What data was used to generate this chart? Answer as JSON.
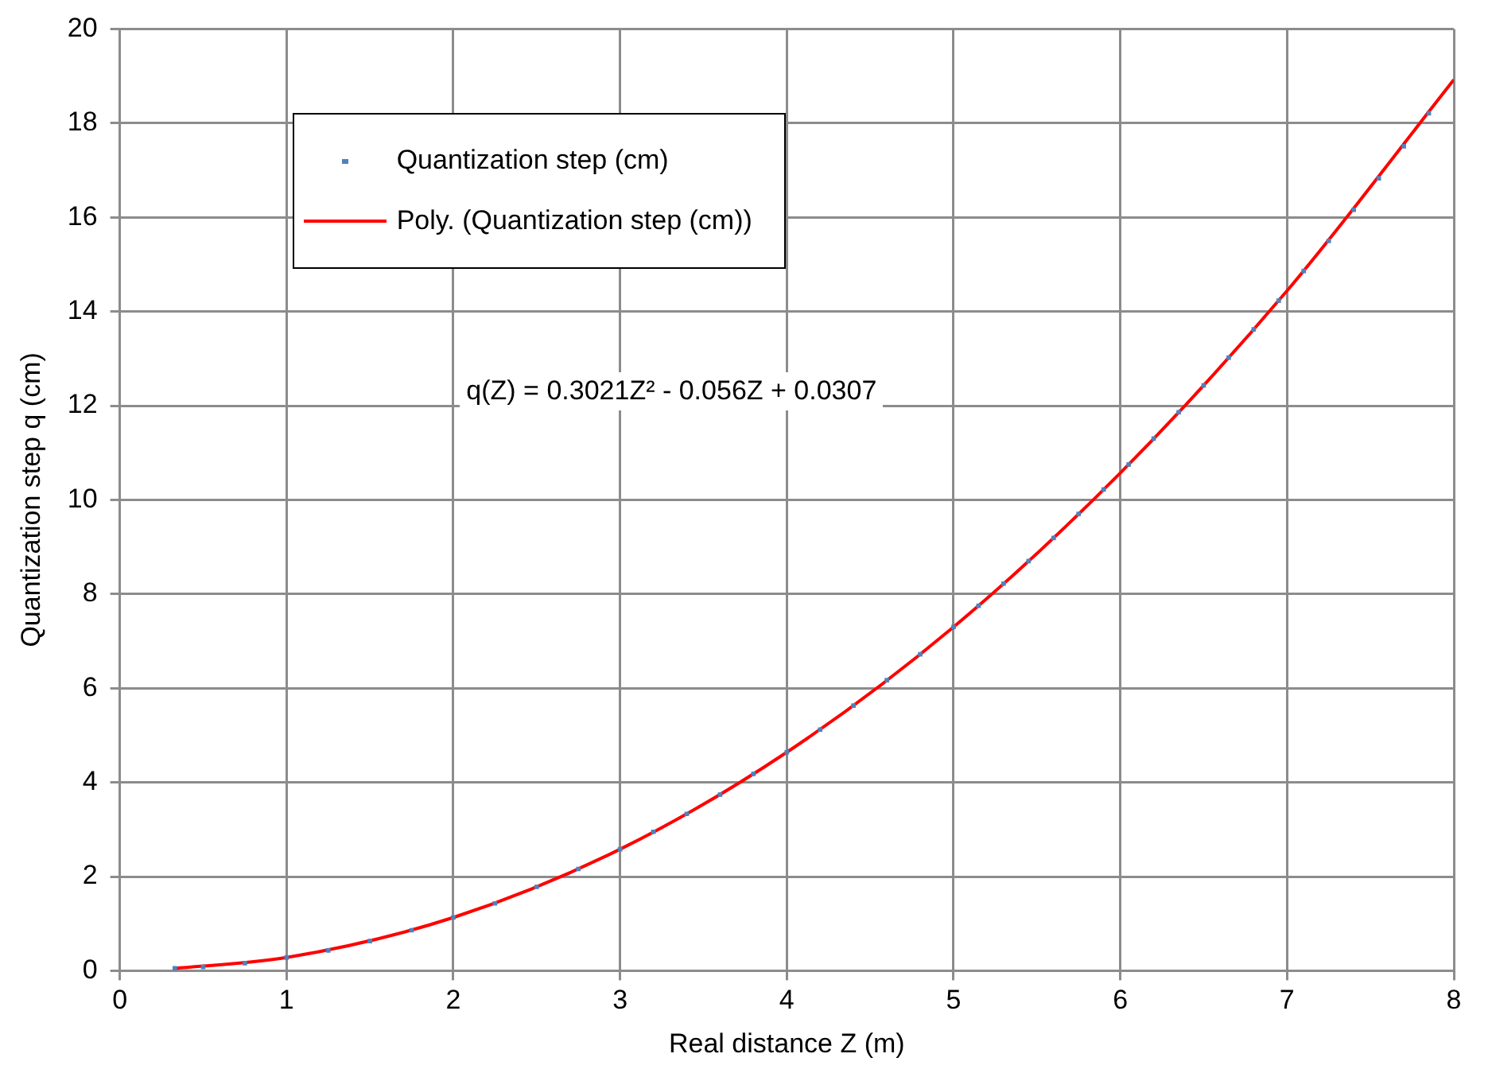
{
  "chart_data": {
    "type": "scatter",
    "xlabel": "Real distance Z (m)",
    "ylabel": "Quantization step q (cm)",
    "xlim": [
      0,
      8
    ],
    "xticks": [
      0,
      1,
      2,
      3,
      4,
      5,
      6,
      7,
      8
    ],
    "ylim": [
      0,
      20
    ],
    "yticks": [
      0,
      2,
      4,
      6,
      8,
      10,
      12,
      14,
      16,
      18,
      20
    ],
    "grid": true,
    "legend": "top left",
    "annotations": [
      "q(Z) = 0.3021Z² - 0.056Z + 0.0307"
    ],
    "series": [
      {
        "name": "Quantization step (cm)",
        "marker": "square",
        "color": "#4f81bd",
        "x": [
          0.33,
          0.5,
          0.75,
          1,
          1.25,
          1.5,
          1.75,
          2,
          2.25,
          2.5,
          2.75,
          3,
          3.2,
          3.4,
          3.6,
          3.8,
          4,
          4.2,
          4.4,
          4.6,
          4.8,
          5,
          5.15,
          5.3,
          5.45,
          5.6,
          5.75,
          5.9,
          6.05,
          6.2,
          6.35,
          6.5,
          6.65,
          6.8,
          6.95,
          7.1,
          7.25,
          7.4,
          7.55,
          7.7,
          7.85
        ],
        "values": [
          0.05,
          0.08,
          0.16,
          0.28,
          0.43,
          0.63,
          0.86,
          1.13,
          1.43,
          1.78,
          2.16,
          2.58,
          2.95,
          3.33,
          3.74,
          4.18,
          4.64,
          5.12,
          5.63,
          6.17,
          6.72,
          7.3,
          7.75,
          8.22,
          8.7,
          9.19,
          9.7,
          10.22,
          10.75,
          11.3,
          11.86,
          12.43,
          13.02,
          13.62,
          14.23,
          14.86,
          15.5,
          16.16,
          16.83,
          17.51,
          18.21
        ]
      },
      {
        "name": "Poly. (Quantization step (cm))",
        "type": "line",
        "marker": "none",
        "color": "#ff0000",
        "x": [
          0.33,
          1,
          2,
          3,
          4,
          5,
          6,
          7,
          8
        ],
        "values": [
          0.05,
          0.28,
          1.13,
          2.58,
          4.64,
          7.3,
          10.57,
          14.44,
          18.92
        ]
      }
    ]
  }
}
